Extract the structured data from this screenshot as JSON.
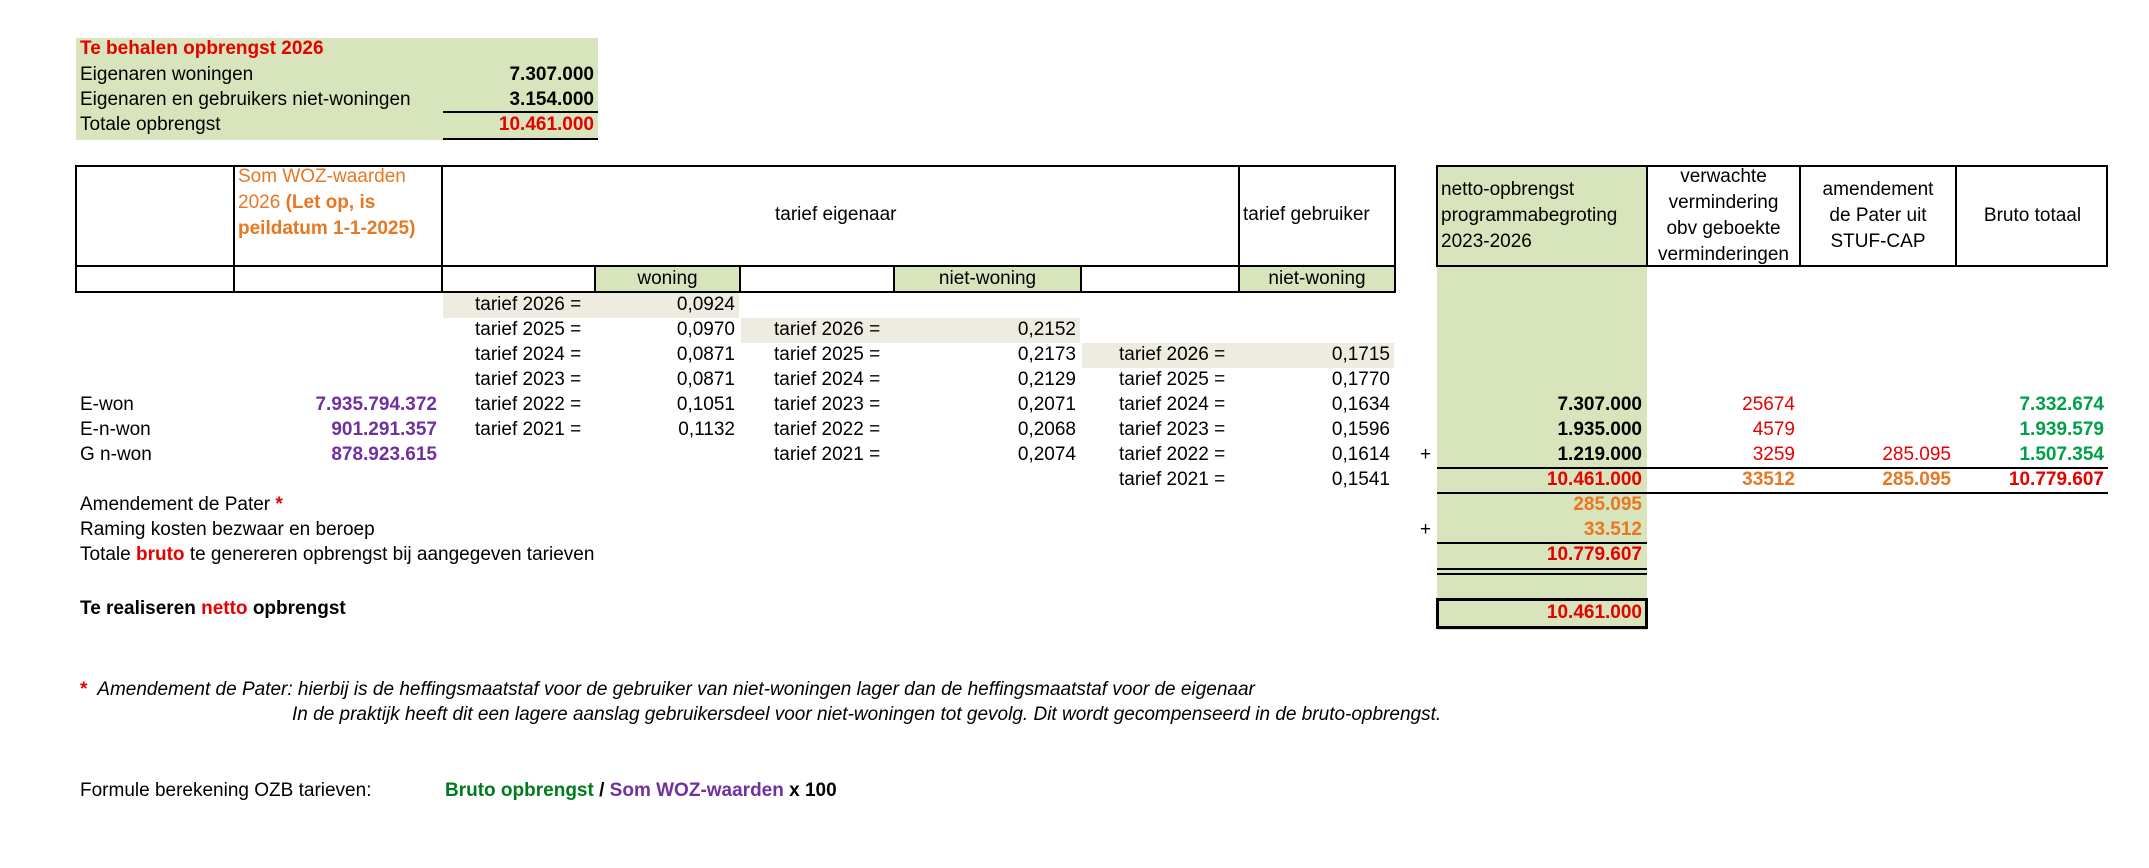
{
  "summary": {
    "title": "Te behalen opbrengst 2026",
    "rows": [
      {
        "label": "Eigenaren woningen",
        "value": "7.307.000"
      },
      {
        "label": "Eigenaren en gebruikers niet-woningen",
        "value": "3.154.000"
      },
      {
        "label": "Totale opbrengst",
        "value": "10.461.000"
      }
    ]
  },
  "headers": {
    "woz_line1": "Som WOZ-waarden",
    "woz_line2": "2026",
    "woz_bold_a": "(Let op, is",
    "woz_bold_b": "peildatum 1-1-2025)",
    "tarief_eigenaar": "tarief eigenaar",
    "tarief_gebruiker": "tarief gebruiker",
    "netto": [
      "netto-opbrengst",
      "programmabegroting",
      "2023-2026"
    ],
    "verwachte": [
      "verwachte",
      "vermindering",
      "obv geboekte",
      "verminderingen"
    ],
    "amendement": [
      "amendement",
      "de Pater uit",
      "STUF-CAP"
    ],
    "bruto": "Bruto totaal",
    "sub_woning": "woning",
    "sub_niet_woning_eig": "niet-woning",
    "sub_niet_woning_geb": "niet-woning"
  },
  "tarief_woning": [
    {
      "label": "tarief 2026 =",
      "value": "0,0924"
    },
    {
      "label": "tarief 2025 =",
      "value": "0,0970"
    },
    {
      "label": "tarief 2024 =",
      "value": "0,0871"
    },
    {
      "label": "tarief 2023 =",
      "value": "0,0871"
    },
    {
      "label": "tarief 2022 =",
      "value": "0,1051"
    },
    {
      "label": "tarief 2021 =",
      "value": "0,1132"
    }
  ],
  "tarief_niet_woning_eig": [
    {
      "label": "tarief 2026 =",
      "value": "0,2152"
    },
    {
      "label": "tarief 2025 =",
      "value": "0,2173"
    },
    {
      "label": "tarief 2024 =",
      "value": "0,2129"
    },
    {
      "label": "tarief 2023 =",
      "value": "0,2071"
    },
    {
      "label": "tarief 2022 =",
      "value": "0,2068"
    },
    {
      "label": "tarief 2021 =",
      "value": "0,2074"
    }
  ],
  "tarief_niet_woning_geb": [
    {
      "label": "tarief 2026 =",
      "value": "0,1715"
    },
    {
      "label": "tarief 2025 =",
      "value": "0,1770"
    },
    {
      "label": "tarief 2024 =",
      "value": "0,1634"
    },
    {
      "label": "tarief 2023 =",
      "value": "0,1596"
    },
    {
      "label": "tarief 2022 =",
      "value": "0,1614"
    },
    {
      "label": "tarief 2021 =",
      "value": "0,1541"
    }
  ],
  "categories": [
    {
      "label": "E-won",
      "woz": "7.935.794.372",
      "netto": "7.307.000",
      "verw": "25674",
      "amend": "",
      "bruto": "7.332.674"
    },
    {
      "label": "E-n-won",
      "woz": "901.291.357",
      "netto": "1.935.000",
      "verw": "4579",
      "amend": "",
      "bruto": "1.939.579"
    },
    {
      "label": "G n-won",
      "woz": "878.923.615",
      "netto": "1.219.000",
      "verw": "3259",
      "amend": "285.095",
      "bruto": "1.507.354"
    }
  ],
  "plus_sign": "+",
  "totals": {
    "netto": "10.461.000",
    "verw": "33512",
    "amend": "285.095",
    "bruto": "10.779.607"
  },
  "extra": {
    "amendement_label": "Amendement de Pater",
    "star": "*",
    "amendement_value": "285.095",
    "raming_label": "Raming kosten bezwaar en beroep",
    "raming_value": "33.512",
    "bruto_pre": "Totale",
    "bruto_word": "bruto",
    "bruto_post": "te genereren opbrengst bij aangegeven tarieven",
    "bruto_value": "10.779.607",
    "netto_pre": "Te realiseren",
    "netto_word": "netto",
    "netto_post": "opbrengst",
    "netto_value": "10.461.000"
  },
  "footnote": {
    "star": "*",
    "line1": "Amendement de Pater: hierbij is de heffingsmaatstaf voor de gebruiker van niet-woningen lager dan de heffingsmaatstaf voor de eigenaar",
    "line2": "In de praktijk heeft dit een lagere aanslag gebruikersdeel voor niet-woningen tot gevolg. Dit wordt gecompenseerd in de bruto-opbrengst."
  },
  "formula": {
    "label": "Formule berekening OZB tarieven:",
    "part1": "Bruto opbrengst",
    "sep": " / ",
    "part2": "Som WOZ-waarden",
    "part3": " x 100"
  },
  "colors": {
    "red": "#e60000",
    "orange": "#e87722",
    "purple": "#7030a0",
    "green": "#00a04a",
    "panel": "#d8e4bc"
  }
}
